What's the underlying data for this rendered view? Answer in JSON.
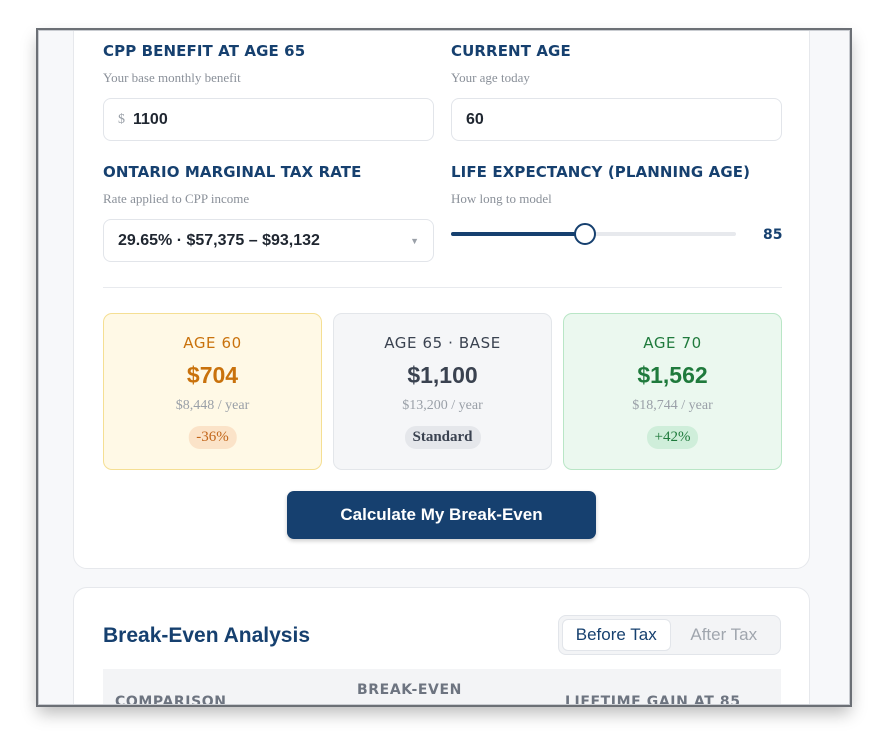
{
  "form": {
    "cpp_benefit": {
      "label": "CPP BENEFIT AT AGE 65",
      "hint": "Your base monthly benefit",
      "prefix": "$",
      "value": "1100"
    },
    "current_age": {
      "label": "CURRENT AGE",
      "hint": "Your age today",
      "value": "60"
    },
    "tax_rate": {
      "label": "ONTARIO MARGINAL TAX RATE",
      "hint": "Rate applied to CPP income",
      "value": "29.65% · $57,375 – $93,132"
    },
    "life_expectancy": {
      "label": "LIFE EXPECTANCY (PLANNING AGE)",
      "hint": "How long to model",
      "value": "85",
      "slider_fraction": 0.47
    }
  },
  "options": [
    {
      "title": "AGE 60",
      "amount": "$704",
      "per_year": "$8,448 / year",
      "badge": "-36%"
    },
    {
      "title": "AGE 65 · BASE",
      "amount": "$1,100",
      "per_year": "$13,200 / year",
      "badge": "Standard"
    },
    {
      "title": "AGE 70",
      "amount": "$1,562",
      "per_year": "$18,744 / year",
      "badge": "+42%"
    }
  ],
  "calculate_label": "Calculate My Break-Even",
  "analysis": {
    "title": "Break-Even Analysis",
    "toggle": [
      "Before Tax",
      "After Tax"
    ],
    "columns": [
      "COMPARISON",
      "BREAK-EVEN",
      "LIFETIME GAIN AT 85"
    ]
  }
}
